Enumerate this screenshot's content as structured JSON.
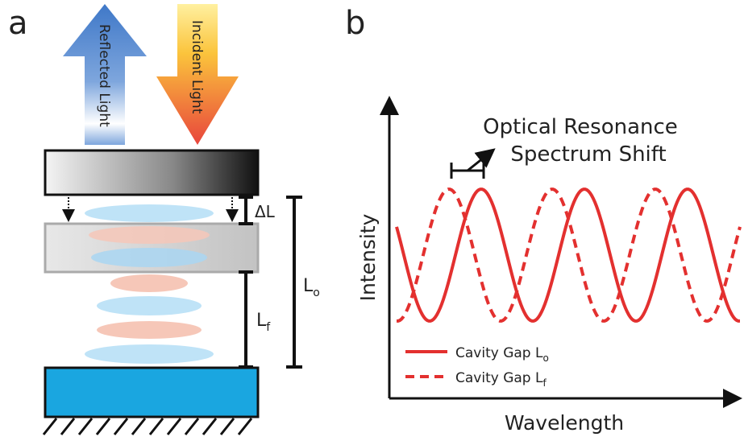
{
  "panels": {
    "a": "a",
    "b": "b"
  },
  "arrows": {
    "reflected": "Reflected Light",
    "incident": "Incident Light"
  },
  "gaps": {
    "delta": "ΔL",
    "lo": {
      "text": "L",
      "sub": "o"
    },
    "lf": {
      "text": "L",
      "sub": "f"
    }
  },
  "annotation": {
    "line1": "Optical Resonance",
    "line2": "Spectrum Shift"
  },
  "axes": {
    "y": "Intensity",
    "x": "Wavelength"
  },
  "legend": [
    {
      "text": "Cavity Gap L",
      "sub": "o"
    },
    {
      "text": "Cavity Gap L",
      "sub": "f"
    }
  ]
}
